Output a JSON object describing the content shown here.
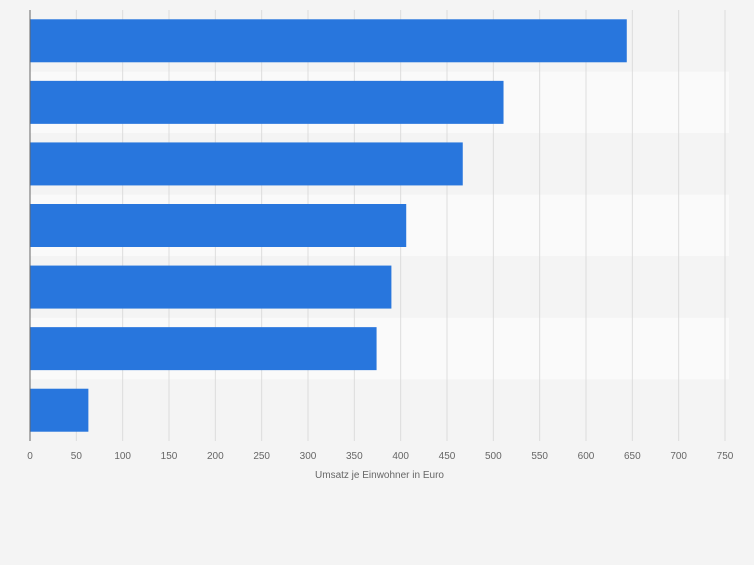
{
  "chart_data": {
    "type": "bar",
    "orientation": "horizontal",
    "categories": [
      "",
      "",
      "",
      "",
      "",
      "",
      ""
    ],
    "values": [
      644,
      511,
      467,
      406,
      390,
      374,
      63
    ],
    "title": "",
    "xlabel": "Umsatz je Einwohner in Euro",
    "ylabel": "",
    "xlim": [
      0,
      750
    ],
    "ticks": [
      0,
      50,
      100,
      150,
      200,
      250,
      300,
      350,
      400,
      450,
      500,
      550,
      600,
      650,
      700,
      750
    ],
    "tick_labels": [
      "0",
      "50",
      "100",
      "150",
      "200",
      "250",
      "300",
      "350",
      "400",
      "450",
      "500",
      "550",
      "600",
      "650",
      "700",
      "750"
    ],
    "grid": true,
    "legend": "none"
  },
  "colors": {
    "bar": "#2876dd",
    "page_background": "#f4f4f4",
    "band_even": "#f4f4f4",
    "band_odd": "#fafafa",
    "grid": "#dddddd",
    "axis": "#666666",
    "tick_text": "#666666"
  }
}
